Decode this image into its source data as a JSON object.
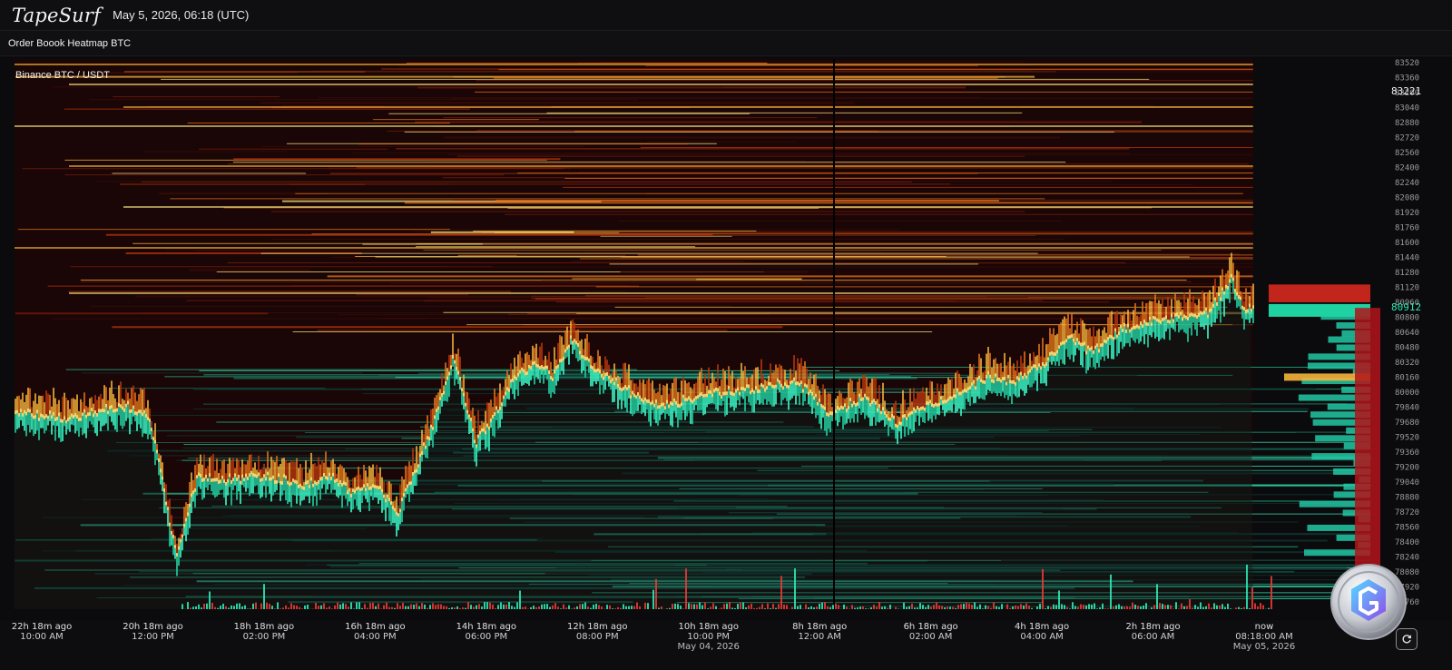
{
  "header": {
    "logo": "TapeSurf",
    "datetime": "May 5, 2026, 06:18 (UTC)"
  },
  "chart_title": "Order Boook Heatmap BTC",
  "exchange_pair": "Binance BTC / USDT",
  "chart_data": {
    "type": "heatmap",
    "price_ticks": [
      83520,
      83360,
      83200,
      83040,
      82880,
      82720,
      82560,
      82400,
      82240,
      82080,
      81920,
      81760,
      81600,
      81440,
      81280,
      81120,
      80960,
      80800,
      80640,
      80480,
      80320,
      80160,
      80000,
      79840,
      79680,
      79520,
      79360,
      79200,
      79040,
      78880,
      78720,
      78560,
      78400,
      78240,
      78080,
      77920,
      77760
    ],
    "price_tick_labels": [
      "83520",
      "83360",
      "83200",
      "83040",
      "82880",
      "82720",
      "82560",
      "82400",
      "82240",
      "82080",
      "81920",
      "81760",
      "81600",
      "81440",
      "81280",
      "81120",
      "80960",
      "80800",
      "80640",
      "80480",
      "80320",
      "80160",
      "80000",
      "79840",
      "79680",
      "79520",
      "79360",
      "79200",
      "79040",
      "78880",
      "78720",
      "78560",
      "78400",
      "78240",
      "78080",
      "77920",
      "77760"
    ],
    "ylim": [
      77680,
      83560
    ],
    "price_markers": [
      {
        "label": "83221",
        "value": 83221,
        "color": "#f2f2f2"
      },
      {
        "label": "80912",
        "value": 80912,
        "color": "#2ee6b4"
      }
    ],
    "price_path_hours_ago": [
      22.3,
      21.5,
      21,
      20.5,
      20.1,
      20,
      19.8,
      19.6,
      19.2,
      18.7,
      18,
      17.3,
      16.8,
      16.4,
      16,
      15.6,
      15.3,
      15,
      14.6,
      14.4,
      14.2,
      13.9,
      13.5,
      13.1,
      12.8,
      12.5,
      12.1,
      11.7,
      11.2,
      10.7,
      10.2,
      9.6,
      9,
      8.4,
      7.8,
      7.2,
      6.6,
      6.1,
      5.6,
      5,
      4.5,
      4,
      3.5,
      3.1,
      2.6,
      2,
      1.4,
      1,
      0.6,
      0.4,
      0.2
    ],
    "price_path": [
      79760,
      79700,
      79780,
      79840,
      79720,
      79500,
      78900,
      78250,
      79100,
      79050,
      79100,
      79000,
      79080,
      78900,
      79000,
      78700,
      79150,
      79600,
      80380,
      79900,
      79450,
      79700,
      80150,
      80300,
      80150,
      80550,
      80250,
      80100,
      79900,
      79850,
      79950,
      80000,
      80050,
      80100,
      79750,
      79950,
      79650,
      79850,
      79950,
      80150,
      80100,
      80300,
      80550,
      80420,
      80650,
      80750,
      80800,
      80850,
      81200,
      80900,
      80870
    ],
    "volume_colors": {
      "bid": "#2ee6b4",
      "ask": "#e53935"
    },
    "heat_colors": [
      "#3a0c08",
      "#7a1a0a",
      "#b8340c",
      "#e2701a",
      "#f3b23a",
      "#f5e07a"
    ],
    "liquidity_colors": [
      "#0f3b34",
      "#167a64",
      "#22c79a",
      "#3af0c0"
    ],
    "time_ticks": [
      {
        "main": "22h 18m ago",
        "sub": "10:00 AM",
        "date": ""
      },
      {
        "main": "20h 18m ago",
        "sub": "12:00 PM",
        "date": ""
      },
      {
        "main": "18h 18m ago",
        "sub": "02:00 PM",
        "date": ""
      },
      {
        "main": "16h 18m ago",
        "sub": "04:00 PM",
        "date": ""
      },
      {
        "main": "14h 18m ago",
        "sub": "06:00 PM",
        "date": ""
      },
      {
        "main": "12h 18m ago",
        "sub": "08:00 PM",
        "date": ""
      },
      {
        "main": "10h 18m ago",
        "sub": "10:00 PM",
        "date": "May 04, 2026"
      },
      {
        "main": "8h 18m ago",
        "sub": "12:00 AM",
        "date": ""
      },
      {
        "main": "6h 18m ago",
        "sub": "02:00 AM",
        "date": ""
      },
      {
        "main": "4h 18m ago",
        "sub": "04:00 AM",
        "date": ""
      },
      {
        "main": "2h 18m ago",
        "sub": "06:00 AM",
        "date": ""
      },
      {
        "main": "now",
        "sub": "08:18:00 AM",
        "date": "May 05, 2026"
      }
    ]
  },
  "icons": {
    "refresh": "refresh-icon",
    "badge": "coin-badge-icon"
  }
}
